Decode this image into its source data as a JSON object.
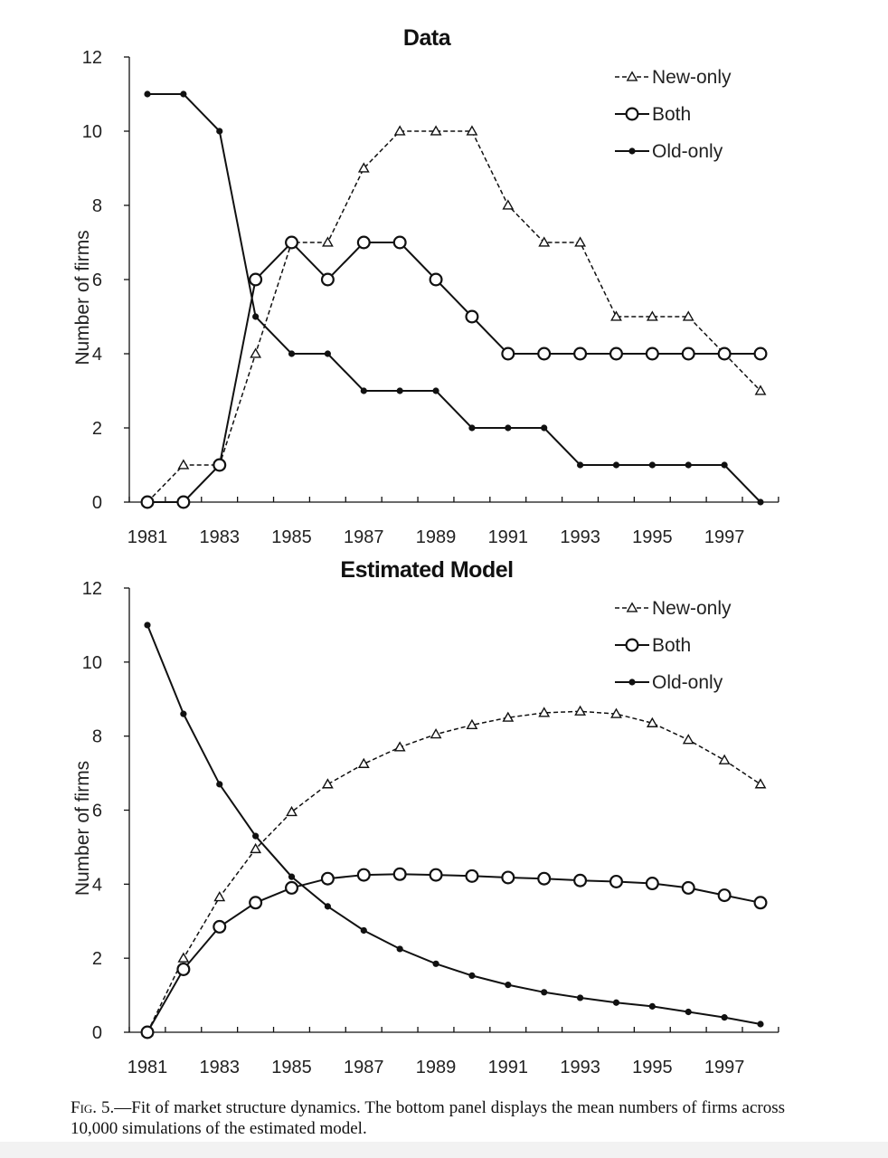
{
  "chart_data": [
    {
      "type": "line",
      "title": "Data",
      "xlabel": "",
      "ylabel": "Number of firms",
      "x": [
        1981,
        1982,
        1983,
        1984,
        1985,
        1986,
        1987,
        1988,
        1989,
        1990,
        1991,
        1992,
        1993,
        1994,
        1995,
        1996,
        1997,
        1998
      ],
      "xticks": [
        "1981",
        "1983",
        "1985",
        "1987",
        "1989",
        "1991",
        "1993",
        "1995",
        "1997"
      ],
      "yticks": [
        "0",
        "2",
        "4",
        "6",
        "8",
        "10",
        "12"
      ],
      "ylim": [
        0,
        12
      ],
      "xlim": [
        1980.5,
        1998.5
      ],
      "legend_position": "top-right",
      "series": [
        {
          "name": "New-only",
          "style": "dashed-triangle",
          "values": [
            0,
            1,
            1,
            4,
            7,
            7,
            9,
            10,
            10,
            10,
            8,
            7,
            7,
            5,
            5,
            5,
            4,
            3
          ]
        },
        {
          "name": "Both",
          "style": "solid-open-circle",
          "values": [
            0,
            0,
            1,
            6,
            7,
            6,
            7,
            7,
            6,
            5,
            4,
            4,
            4,
            4,
            4,
            4,
            4,
            4
          ]
        },
        {
          "name": "Old-only",
          "style": "solid-dot",
          "values": [
            11,
            11,
            10,
            5,
            4,
            4,
            3,
            3,
            3,
            2,
            2,
            2,
            1,
            1,
            1,
            1,
            1,
            0
          ]
        }
      ]
    },
    {
      "type": "line",
      "title": "Estimated Model",
      "xlabel": "",
      "ylabel": "Number of firms",
      "x": [
        1981,
        1982,
        1983,
        1984,
        1985,
        1986,
        1987,
        1988,
        1989,
        1990,
        1991,
        1992,
        1993,
        1994,
        1995,
        1996,
        1997,
        1998
      ],
      "xticks": [
        "1981",
        "1983",
        "1985",
        "1987",
        "1989",
        "1991",
        "1993",
        "1995",
        "1997"
      ],
      "yticks": [
        "0",
        "2",
        "4",
        "6",
        "8",
        "10",
        "12"
      ],
      "ylim": [
        0,
        12
      ],
      "xlim": [
        1980.5,
        1998.5
      ],
      "legend_position": "top-right",
      "series": [
        {
          "name": "New-only",
          "style": "dashed-triangle",
          "values": [
            0,
            2.0,
            3.65,
            4.95,
            5.95,
            6.7,
            7.25,
            7.7,
            8.05,
            8.3,
            8.5,
            8.63,
            8.67,
            8.6,
            8.35,
            7.9,
            7.35,
            6.7
          ]
        },
        {
          "name": "Both",
          "style": "solid-open-circle",
          "values": [
            0,
            1.7,
            2.85,
            3.5,
            3.9,
            4.15,
            4.25,
            4.27,
            4.25,
            4.22,
            4.18,
            4.15,
            4.1,
            4.07,
            4.02,
            3.9,
            3.7,
            3.5
          ]
        },
        {
          "name": "Old-only",
          "style": "solid-dot",
          "values": [
            11,
            8.6,
            6.7,
            5.3,
            4.2,
            3.4,
            2.75,
            2.25,
            1.85,
            1.53,
            1.28,
            1.08,
            0.93,
            0.8,
            0.7,
            0.55,
            0.4,
            0.22
          ]
        }
      ]
    }
  ],
  "caption": {
    "label": "Fig. 5.",
    "text": "—Fit of market structure dynamics. The bottom panel displays the mean numbers of firms across 10,000 simulations of the estimated model."
  }
}
